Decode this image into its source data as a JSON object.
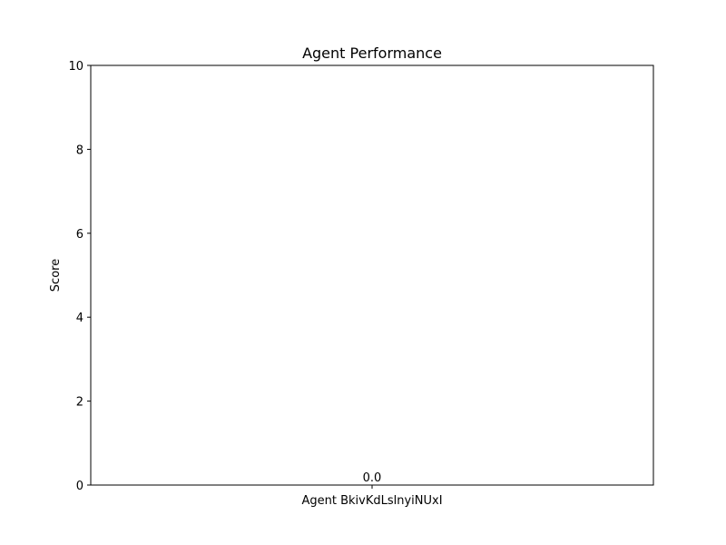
{
  "chart_data": {
    "type": "bar",
    "title": "Agent Performance",
    "xlabel": "",
    "ylabel": "Score",
    "categories": [
      "Agent BkivKdLslnyiNUxI"
    ],
    "values": [
      0.0
    ],
    "data_labels": [
      "0.0"
    ],
    "ylim": [
      0,
      10
    ],
    "yticks": [
      0,
      2,
      4,
      6,
      8,
      10
    ],
    "ytick_labels": [
      "0",
      "2",
      "4",
      "6",
      "8",
      "10"
    ],
    "grid": false,
    "legend": "none",
    "bar_color": "#1f77b4"
  }
}
